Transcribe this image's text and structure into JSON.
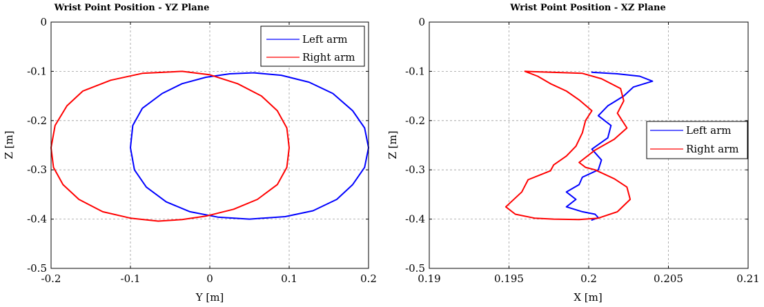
{
  "chart_data": [
    {
      "type": "line",
      "title": "Wrist Point Position - YZ Plane",
      "xlabel": "Y [m]",
      "ylabel": "Z [m]",
      "xlim": [
        -0.2,
        0.2
      ],
      "ylim": [
        -0.5,
        0
      ],
      "xticks": [
        -0.2,
        -0.1,
        0,
        0.1,
        0.2
      ],
      "xtick_labels": [
        "-0.2",
        "-0.1",
        "0",
        "0.1",
        "0.2"
      ],
      "yticks": [
        -0.5,
        -0.4,
        -0.3,
        -0.2,
        -0.1,
        0
      ],
      "ytick_labels": [
        "-0.5",
        "-0.4",
        "-0.3",
        "-0.2",
        "-0.1",
        "0"
      ],
      "grid": true,
      "legend_position": "top-right",
      "series": [
        {
          "name": "Left arm",
          "color": "#0000ff",
          "x": [
            0.055,
            0.09,
            0.125,
            0.155,
            0.18,
            0.195,
            0.2,
            0.195,
            0.18,
            0.16,
            0.13,
            0.095,
            0.05,
            0.01,
            -0.025,
            -0.055,
            -0.08,
            -0.095,
            -0.1,
            -0.097,
            -0.085,
            -0.06,
            -0.035,
            -0.005,
            0.025,
            0.055
          ],
          "y": [
            -0.103,
            -0.108,
            -0.122,
            -0.145,
            -0.18,
            -0.215,
            -0.255,
            -0.295,
            -0.33,
            -0.36,
            -0.383,
            -0.395,
            -0.4,
            -0.396,
            -0.385,
            -0.365,
            -0.335,
            -0.3,
            -0.255,
            -0.21,
            -0.175,
            -0.145,
            -0.125,
            -0.112,
            -0.105,
            -0.103
          ]
        },
        {
          "name": "Right arm",
          "color": "#ff0000",
          "x": [
            -0.035,
            0.0,
            0.035,
            0.065,
            0.085,
            0.097,
            0.1,
            0.097,
            0.085,
            0.06,
            0.03,
            -0.005,
            -0.035,
            -0.065,
            -0.1,
            -0.135,
            -0.165,
            -0.185,
            -0.197,
            -0.2,
            -0.195,
            -0.18,
            -0.16,
            -0.125,
            -0.085,
            -0.035
          ],
          "y": [
            -0.1,
            -0.107,
            -0.125,
            -0.15,
            -0.18,
            -0.215,
            -0.255,
            -0.295,
            -0.33,
            -0.36,
            -0.38,
            -0.394,
            -0.401,
            -0.404,
            -0.398,
            -0.385,
            -0.36,
            -0.33,
            -0.295,
            -0.255,
            -0.21,
            -0.17,
            -0.14,
            -0.118,
            -0.104,
            -0.1
          ]
        }
      ]
    },
    {
      "type": "line",
      "title": "Wrist Point Position - XZ Plane",
      "xlabel": "X [m]",
      "ylabel": "Z [m]",
      "xlim": [
        0.19,
        0.21
      ],
      "ylim": [
        -0.5,
        0
      ],
      "xticks": [
        0.19,
        0.195,
        0.2,
        0.205,
        0.21
      ],
      "xtick_labels": [
        "0.19",
        "0.195",
        "0.2",
        "0.205",
        "0.21"
      ],
      "yticks": [
        -0.5,
        -0.4,
        -0.3,
        -0.2,
        -0.1,
        0
      ],
      "ytick_labels": [
        "-0.5",
        "-0.4",
        "-0.3",
        "-0.2",
        "-0.1",
        "0"
      ],
      "grid": true,
      "legend_position": "right",
      "series": [
        {
          "name": "Left arm",
          "color": "#0000ff",
          "x": [
            0.2002,
            0.2018,
            0.2032,
            0.204,
            0.2028,
            0.2022,
            0.2012,
            0.2006,
            0.2014,
            0.2012,
            0.2002,
            0.2008,
            0.2006,
            0.1996,
            0.1994,
            0.1986,
            0.1992,
            0.1986,
            0.1996,
            0.2004,
            0.2006,
            0.2002
          ],
          "y": [
            -0.102,
            -0.105,
            -0.11,
            -0.12,
            -0.132,
            -0.15,
            -0.17,
            -0.19,
            -0.21,
            -0.235,
            -0.258,
            -0.28,
            -0.3,
            -0.315,
            -0.33,
            -0.345,
            -0.36,
            -0.375,
            -0.385,
            -0.39,
            -0.397,
            -0.402
          ]
        },
        {
          "name": "Right arm",
          "color": "#ff0000",
          "x": [
            0.196,
            0.1968,
            0.1976,
            0.1986,
            0.1994,
            0.2002,
            0.1998,
            0.1996,
            0.1992,
            0.1986,
            0.1978,
            0.1976,
            0.1962,
            0.1958,
            0.1948,
            0.1954,
            0.1966,
            0.1978,
            0.1994,
            0.2006,
            0.2018,
            0.2026,
            0.2024,
            0.2016,
            0.2004,
            0.1998,
            0.1994,
            0.2004,
            0.2016,
            0.2024,
            0.2018,
            0.2022,
            0.202,
            0.2008,
            0.1996,
            0.196
          ],
          "y": [
            -0.1,
            -0.11,
            -0.125,
            -0.14,
            -0.158,
            -0.18,
            -0.2,
            -0.225,
            -0.252,
            -0.272,
            -0.29,
            -0.302,
            -0.32,
            -0.345,
            -0.375,
            -0.39,
            -0.398,
            -0.4,
            -0.401,
            -0.398,
            -0.385,
            -0.36,
            -0.335,
            -0.318,
            -0.3,
            -0.295,
            -0.285,
            -0.26,
            -0.238,
            -0.215,
            -0.185,
            -0.16,
            -0.135,
            -0.115,
            -0.104,
            -0.1
          ]
        }
      ]
    }
  ]
}
